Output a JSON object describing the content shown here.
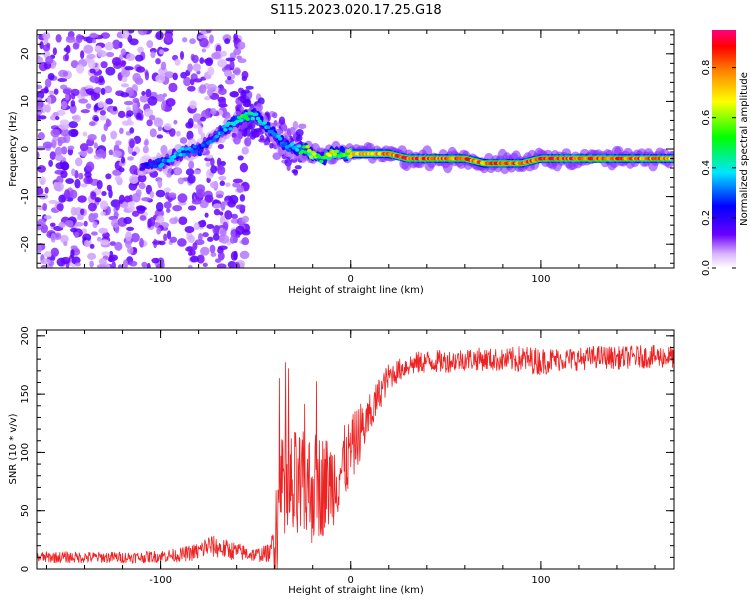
{
  "title": "S115.2023.020.17.25.G18",
  "chart_data": [
    {
      "type": "heatmap",
      "xlabel": "Height of straight line (km)",
      "ylabel": "Frequency (Hz)",
      "xlim": [
        -165,
        170
      ],
      "ylim": [
        -25,
        25
      ],
      "xticks": [
        -100,
        0,
        100
      ],
      "yticks": [
        -20,
        -10,
        0,
        10,
        20
      ],
      "colorbar": {
        "label": "Normalized spectral amplitude",
        "range": [
          0.0,
          0.95
        ],
        "ticks": [
          0.0,
          0.2,
          0.4,
          0.6,
          0.8
        ]
      },
      "ridge": {
        "x": [
          -165,
          -140,
          -115,
          -100,
          -90,
          -80,
          -70,
          -60,
          -55,
          -50,
          -45,
          -40,
          -35,
          -30,
          -25,
          -20,
          -15,
          -10,
          -5,
          0,
          10,
          20,
          30,
          40,
          50,
          60,
          70,
          80,
          90,
          100,
          110,
          120,
          130,
          140,
          150,
          160,
          170
        ],
        "y": [
          -8,
          -6,
          -4,
          -3,
          -1,
          0,
          3,
          6,
          7,
          7,
          5,
          3,
          1,
          0,
          0,
          -1,
          -2,
          -1,
          -1,
          -1,
          -1,
          -1,
          -2,
          -2,
          -2,
          -2,
          -3,
          -3,
          -3,
          -2,
          -2,
          -2,
          -2,
          -2,
          -2,
          -2,
          -2
        ],
        "amplitude": [
          0.05,
          0.05,
          0.15,
          0.35,
          0.4,
          0.3,
          0.35,
          0.45,
          0.6,
          0.45,
          0.4,
          0.4,
          0.35,
          0.4,
          0.5,
          0.7,
          0.5,
          0.8,
          0.5,
          0.75,
          0.8,
          0.85,
          0.9,
          0.9,
          0.85,
          0.9,
          0.85,
          0.9,
          0.85,
          0.9,
          0.9,
          0.9,
          0.9,
          0.85,
          0.85,
          0.85,
          0.8
        ]
      }
    },
    {
      "type": "line",
      "xlabel": "Height of straight line (km)",
      "ylabel": "SNR (10 * v/v)",
      "xlim": [
        -165,
        170
      ],
      "ylim": [
        0,
        205
      ],
      "xticks": [
        -100,
        0,
        100
      ],
      "yticks": [
        0,
        50,
        100,
        150,
        200
      ],
      "color": "#ee2222",
      "series": [
        {
          "x": [
            -165,
            -150,
            -130,
            -110,
            -90,
            -80,
            -75,
            -60,
            -50,
            -42,
            -40,
            -38,
            -35,
            -30,
            -25,
            -20,
            -15,
            -10,
            -5,
            0,
            5,
            10,
            15,
            20,
            25,
            30,
            40,
            50,
            60,
            70,
            80,
            90,
            100,
            110,
            120,
            130,
            140,
            150,
            160,
            170
          ],
          "y": [
            10,
            10,
            10,
            10,
            12,
            15,
            20,
            15,
            12,
            14,
            30,
            55,
            60,
            65,
            68,
            70,
            72,
            74,
            85,
            100,
            118,
            130,
            150,
            165,
            170,
            175,
            178,
            178,
            180,
            180,
            179,
            180,
            178,
            180,
            180,
            182,
            181,
            182,
            182,
            182
          ],
          "noise": [
            5,
            5,
            5,
            5,
            6,
            8,
            10,
            8,
            6,
            8,
            40,
            55,
            55,
            55,
            50,
            50,
            45,
            40,
            35,
            30,
            25,
            20,
            15,
            12,
            10,
            10,
            10,
            10,
            10,
            10,
            10,
            12,
            12,
            10,
            10,
            10,
            10,
            10,
            10,
            10
          ]
        }
      ]
    }
  ]
}
